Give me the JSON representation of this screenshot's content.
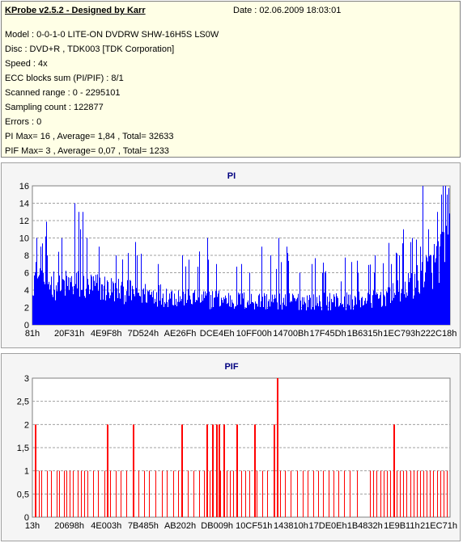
{
  "info": {
    "title": "KProbe v2.5.2 - Designed by Karr",
    "date": "Date : 02.06.2009 18:03:01",
    "lines": [
      "Model : 0-0-1-0 LITE-ON DVDRW SHW-16H5S  LS0W",
      "Disc : DVD+R , TDK003 [TDK Corporation]",
      "Speed : 4x",
      "ECC blocks sum (PI/PIF) : 8/1",
      "Scanned range : 0 - 2295101",
      "Sampling count : 122877",
      "Errors : 0",
      "PI Max= 16 , Average= 1,84 , Total= 32633",
      "PIF Max= 3 , Average= 0,07 , Total= 1233"
    ]
  },
  "chart_data": [
    {
      "type": "bar",
      "title": "PI",
      "color": "#0000ff",
      "ylim": [
        0,
        16
      ],
      "yticks": [
        "0",
        "2",
        "4",
        "6",
        "8",
        "10",
        "12",
        "14",
        "16"
      ],
      "xticks": [
        "81h",
        "20F31h",
        "4E9F8h",
        "7D524h",
        "AE26Fh",
        "DCE4Eh",
        "10FF00h",
        "14700Bh",
        "17F45Dh",
        "1B6315h",
        "1EC793h",
        "222C18h"
      ],
      "grid": true,
      "baseline_profile": {
        "x_fraction": [
          0.0,
          0.03,
          0.06,
          0.1,
          0.14,
          0.18,
          0.22,
          0.26,
          0.3,
          0.35,
          0.4,
          0.45,
          0.5,
          0.55,
          0.6,
          0.65,
          0.7,
          0.75,
          0.8,
          0.83,
          0.86,
          0.88,
          0.9,
          0.92,
          0.94,
          0.96,
          0.98,
          1.0
        ],
        "value": [
          6,
          5.5,
          5,
          5,
          4.8,
          4.5,
          4.2,
          4,
          3.8,
          3.5,
          3.3,
          3.2,
          3,
          3,
          3,
          3,
          3,
          3,
          3.2,
          3.5,
          4,
          4.5,
          5,
          5.5,
          6.5,
          7.5,
          9,
          11
        ]
      },
      "spikes": [
        {
          "x_fraction": 0.01,
          "value": 10
        },
        {
          "x_fraction": 0.02,
          "value": 9
        },
        {
          "x_fraction": 0.035,
          "value": 8
        },
        {
          "x_fraction": 0.1,
          "value": 14
        },
        {
          "x_fraction": 0.11,
          "value": 13
        },
        {
          "x_fraction": 0.12,
          "value": 13
        },
        {
          "x_fraction": 0.115,
          "value": 11
        },
        {
          "x_fraction": 0.13,
          "value": 10
        },
        {
          "x_fraction": 0.16,
          "value": 9
        },
        {
          "x_fraction": 0.2,
          "value": 8
        },
        {
          "x_fraction": 0.25,
          "value": 8
        },
        {
          "x_fraction": 0.3,
          "value": 7
        },
        {
          "x_fraction": 0.36,
          "value": 8
        },
        {
          "x_fraction": 0.4,
          "value": 8
        },
        {
          "x_fraction": 0.42,
          "value": 10
        },
        {
          "x_fraction": 0.44,
          "value": 7
        },
        {
          "x_fraction": 0.5,
          "value": 7
        },
        {
          "x_fraction": 0.52,
          "value": 6
        },
        {
          "x_fraction": 0.55,
          "value": 9
        },
        {
          "x_fraction": 0.57,
          "value": 8
        },
        {
          "x_fraction": 0.59,
          "value": 10
        },
        {
          "x_fraction": 0.61,
          "value": 9
        },
        {
          "x_fraction": 0.64,
          "value": 6
        },
        {
          "x_fraction": 0.67,
          "value": 7
        },
        {
          "x_fraction": 0.7,
          "value": 6
        },
        {
          "x_fraction": 0.74,
          "value": 5
        },
        {
          "x_fraction": 0.78,
          "value": 6
        },
        {
          "x_fraction": 0.82,
          "value": 6
        },
        {
          "x_fraction": 0.86,
          "value": 7
        },
        {
          "x_fraction": 0.88,
          "value": 8
        },
        {
          "x_fraction": 0.89,
          "value": 11
        },
        {
          "x_fraction": 0.91,
          "value": 10
        },
        {
          "x_fraction": 0.93,
          "value": 9
        },
        {
          "x_fraction": 0.935,
          "value": 16
        },
        {
          "x_fraction": 0.95,
          "value": 11
        },
        {
          "x_fraction": 0.97,
          "value": 13
        },
        {
          "x_fraction": 0.98,
          "value": 15
        },
        {
          "x_fraction": 0.985,
          "value": 16
        },
        {
          "x_fraction": 0.99,
          "value": 16
        },
        {
          "x_fraction": 0.995,
          "value": 15
        }
      ]
    },
    {
      "type": "bar",
      "title": "PIF",
      "color": "#ff0000",
      "ylim": [
        0,
        3
      ],
      "yticks": [
        "0",
        "0,5",
        "1",
        "1,5",
        "2",
        "2,5",
        "3"
      ],
      "xticks": [
        "13h",
        "20698h",
        "4E003h",
        "7B485h",
        "AB202h",
        "DB009h",
        "10CF51h",
        "143810h",
        "17DE0Eh",
        "1B4832h",
        "1E9B11h",
        "21EC71h"
      ],
      "grid": true,
      "spikes": [
        {
          "x_fraction": 0.006,
          "value": 2
        },
        {
          "x_fraction": 0.016,
          "value": 1
        },
        {
          "x_fraction": 0.022,
          "value": 1
        },
        {
          "x_fraction": 0.035,
          "value": 1
        },
        {
          "x_fraction": 0.045,
          "value": 1
        },
        {
          "x_fraction": 0.058,
          "value": 1
        },
        {
          "x_fraction": 0.064,
          "value": 1
        },
        {
          "x_fraction": 0.076,
          "value": 1
        },
        {
          "x_fraction": 0.082,
          "value": 1
        },
        {
          "x_fraction": 0.09,
          "value": 1
        },
        {
          "x_fraction": 0.098,
          "value": 1
        },
        {
          "x_fraction": 0.108,
          "value": 1
        },
        {
          "x_fraction": 0.116,
          "value": 1
        },
        {
          "x_fraction": 0.124,
          "value": 1
        },
        {
          "x_fraction": 0.133,
          "value": 1
        },
        {
          "x_fraction": 0.146,
          "value": 1
        },
        {
          "x_fraction": 0.158,
          "value": 1
        },
        {
          "x_fraction": 0.172,
          "value": 1
        },
        {
          "x_fraction": 0.178,
          "value": 2
        },
        {
          "x_fraction": 0.186,
          "value": 1
        },
        {
          "x_fraction": 0.2,
          "value": 1
        },
        {
          "x_fraction": 0.212,
          "value": 1
        },
        {
          "x_fraction": 0.226,
          "value": 1
        },
        {
          "x_fraction": 0.24,
          "value": 2
        },
        {
          "x_fraction": 0.254,
          "value": 1
        },
        {
          "x_fraction": 0.268,
          "value": 1
        },
        {
          "x_fraction": 0.28,
          "value": 1
        },
        {
          "x_fraction": 0.296,
          "value": 1
        },
        {
          "x_fraction": 0.31,
          "value": 1
        },
        {
          "x_fraction": 0.322,
          "value": 1
        },
        {
          "x_fraction": 0.338,
          "value": 1
        },
        {
          "x_fraction": 0.35,
          "value": 1
        },
        {
          "x_fraction": 0.358,
          "value": 2
        },
        {
          "x_fraction": 0.372,
          "value": 1
        },
        {
          "x_fraction": 0.386,
          "value": 1
        },
        {
          "x_fraction": 0.4,
          "value": 1
        },
        {
          "x_fraction": 0.412,
          "value": 1
        },
        {
          "x_fraction": 0.418,
          "value": 2
        },
        {
          "x_fraction": 0.426,
          "value": 1
        },
        {
          "x_fraction": 0.432,
          "value": 2
        },
        {
          "x_fraction": 0.44,
          "value": 2
        },
        {
          "x_fraction": 0.446,
          "value": 2
        },
        {
          "x_fraction": 0.45,
          "value": 1
        },
        {
          "x_fraction": 0.458,
          "value": 2
        },
        {
          "x_fraction": 0.466,
          "value": 1
        },
        {
          "x_fraction": 0.474,
          "value": 1
        },
        {
          "x_fraction": 0.482,
          "value": 1
        },
        {
          "x_fraction": 0.49,
          "value": 2
        },
        {
          "x_fraction": 0.5,
          "value": 1
        },
        {
          "x_fraction": 0.51,
          "value": 1
        },
        {
          "x_fraction": 0.52,
          "value": 1
        },
        {
          "x_fraction": 0.532,
          "value": 2
        },
        {
          "x_fraction": 0.538,
          "value": 1
        },
        {
          "x_fraction": 0.552,
          "value": 1
        },
        {
          "x_fraction": 0.564,
          "value": 1
        },
        {
          "x_fraction": 0.578,
          "value": 2
        },
        {
          "x_fraction": 0.586,
          "value": 3
        },
        {
          "x_fraction": 0.594,
          "value": 1
        },
        {
          "x_fraction": 0.606,
          "value": 1
        },
        {
          "x_fraction": 0.62,
          "value": 1
        },
        {
          "x_fraction": 0.634,
          "value": 1
        },
        {
          "x_fraction": 0.648,
          "value": 1
        },
        {
          "x_fraction": 0.66,
          "value": 1
        },
        {
          "x_fraction": 0.674,
          "value": 1
        },
        {
          "x_fraction": 0.686,
          "value": 1
        },
        {
          "x_fraction": 0.698,
          "value": 1
        },
        {
          "x_fraction": 0.71,
          "value": 1
        },
        {
          "x_fraction": 0.722,
          "value": 1
        },
        {
          "x_fraction": 0.734,
          "value": 1
        },
        {
          "x_fraction": 0.748,
          "value": 1
        },
        {
          "x_fraction": 0.762,
          "value": 1
        },
        {
          "x_fraction": 0.778,
          "value": 1
        },
        {
          "x_fraction": 0.81,
          "value": 1
        },
        {
          "x_fraction": 0.818,
          "value": 1
        },
        {
          "x_fraction": 0.826,
          "value": 1
        },
        {
          "x_fraction": 0.834,
          "value": 1
        },
        {
          "x_fraction": 0.842,
          "value": 1
        },
        {
          "x_fraction": 0.85,
          "value": 1
        },
        {
          "x_fraction": 0.858,
          "value": 1
        },
        {
          "x_fraction": 0.866,
          "value": 2
        },
        {
          "x_fraction": 0.874,
          "value": 1
        },
        {
          "x_fraction": 0.882,
          "value": 1
        },
        {
          "x_fraction": 0.89,
          "value": 1
        },
        {
          "x_fraction": 0.898,
          "value": 1
        },
        {
          "x_fraction": 0.906,
          "value": 1
        },
        {
          "x_fraction": 0.914,
          "value": 1
        },
        {
          "x_fraction": 0.922,
          "value": 1
        },
        {
          "x_fraction": 0.93,
          "value": 1
        },
        {
          "x_fraction": 0.938,
          "value": 1
        },
        {
          "x_fraction": 0.946,
          "value": 1
        },
        {
          "x_fraction": 0.954,
          "value": 1
        },
        {
          "x_fraction": 0.962,
          "value": 1
        },
        {
          "x_fraction": 0.97,
          "value": 1
        },
        {
          "x_fraction": 0.978,
          "value": 1
        },
        {
          "x_fraction": 0.986,
          "value": 1
        },
        {
          "x_fraction": 0.994,
          "value": 1
        }
      ]
    }
  ]
}
